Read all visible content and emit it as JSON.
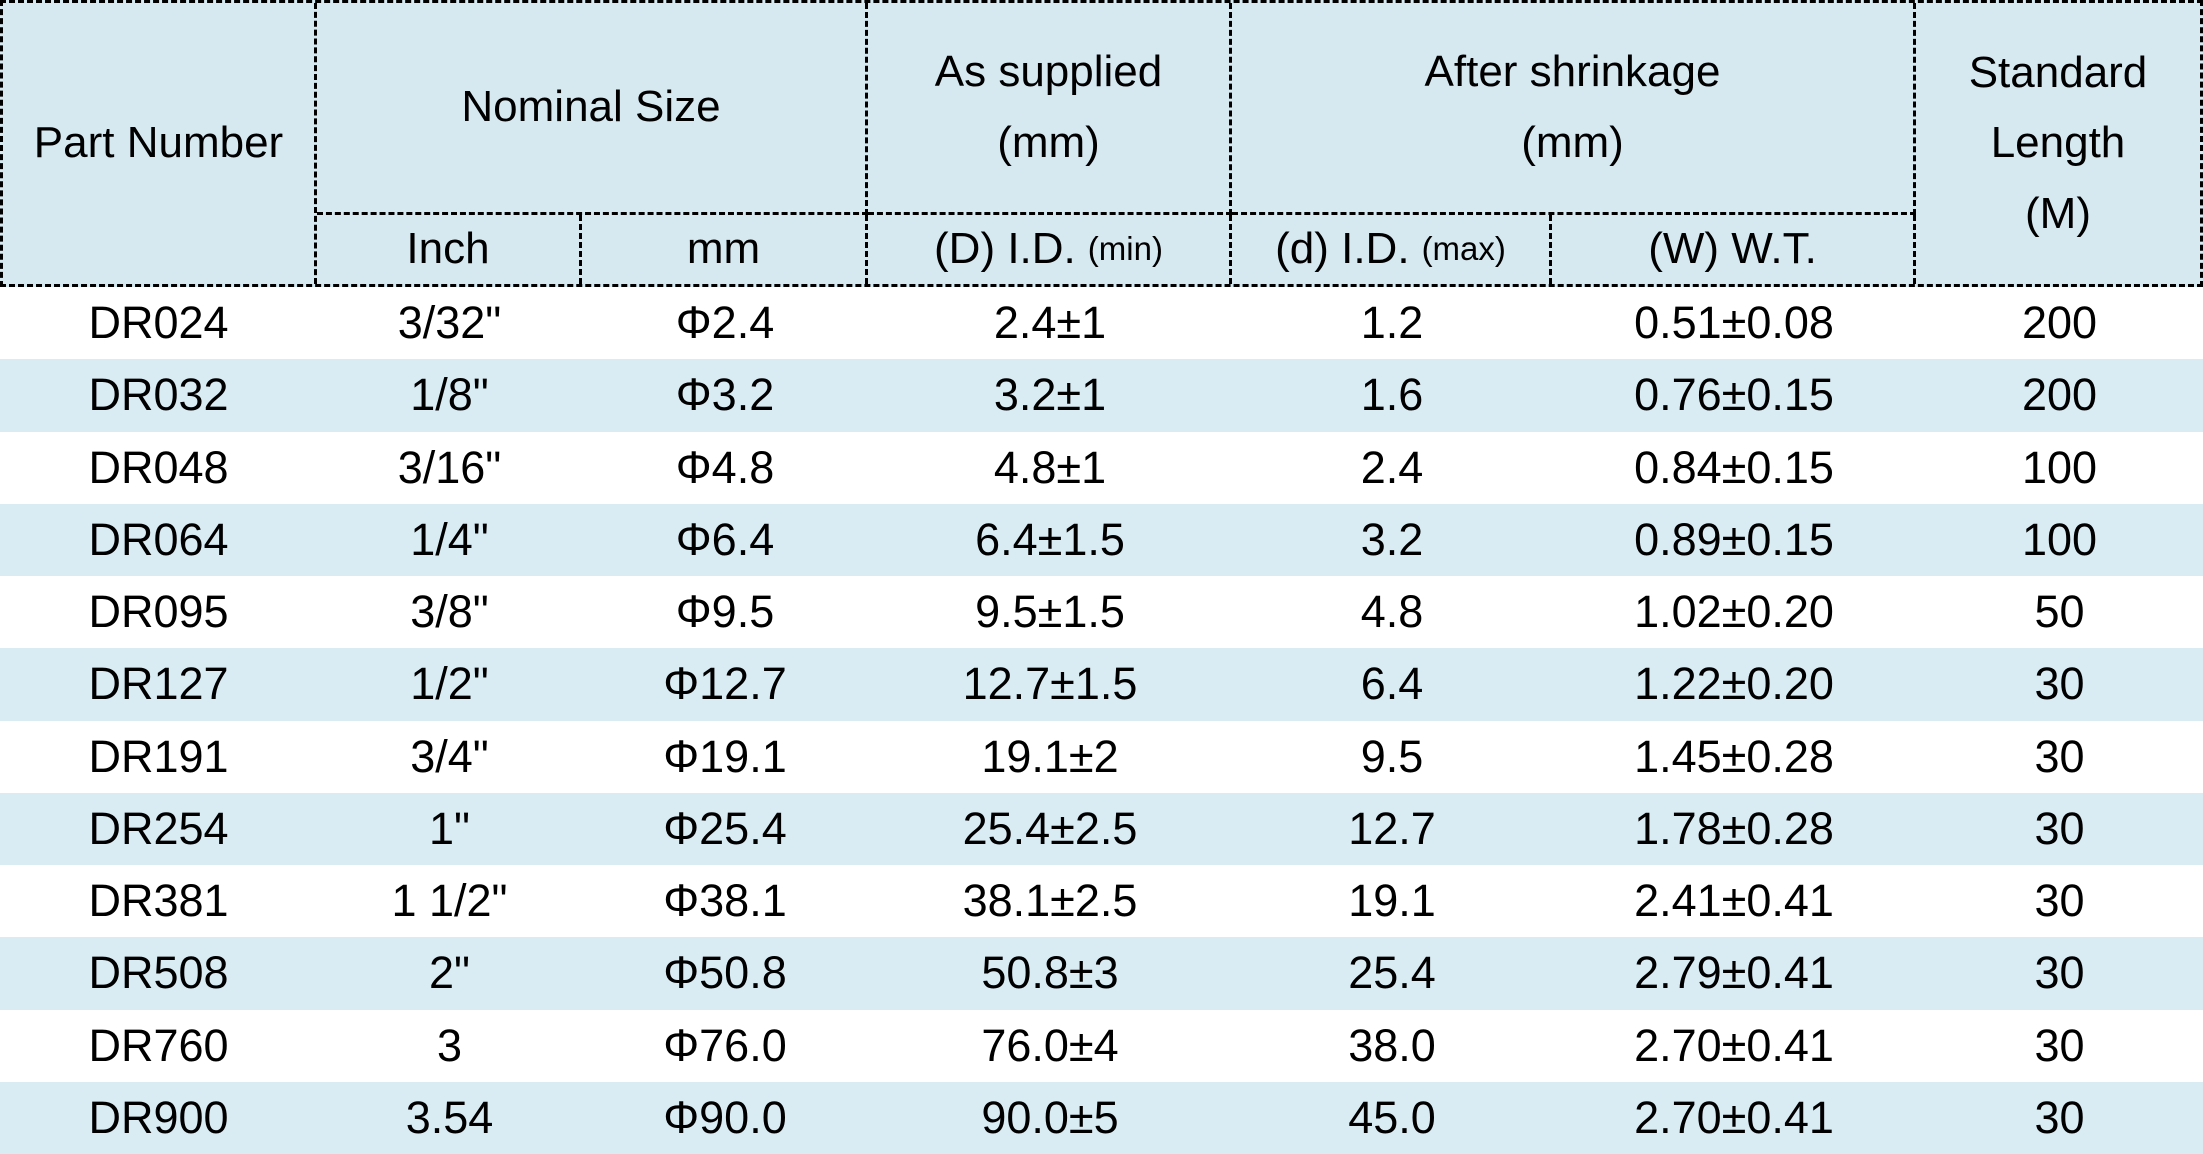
{
  "colors": {
    "header_bg": "#d6e9f1",
    "row_alt_bg": "#d9ecf4",
    "border": "#000000",
    "text": "#000000"
  },
  "table": {
    "header": {
      "part_number": "Part Number",
      "nominal_size": "Nominal Size",
      "as_supplied_line1": "As supplied",
      "as_supplied_line2": "(mm)",
      "after_shrinkage_line1": "After shrinkage",
      "after_shrinkage_line2": "(mm)",
      "standard_length_line1": "Standard",
      "standard_length_line2": "Length",
      "standard_length_line3": "(M)",
      "inch": "Inch",
      "mm": "mm",
      "d_id_min": {
        "main": "(D) I.D.",
        "small": "(min)"
      },
      "d_id_max": {
        "main": "(d) I.D.",
        "small": "(max)"
      },
      "w_wt": "(W) W.T."
    },
    "rows": [
      [
        "DR024",
        "3/32\"",
        "Φ2.4",
        "2.4±1",
        "1.2",
        "0.51±0.08",
        "200"
      ],
      [
        "DR032",
        "1/8\"",
        "Φ3.2",
        "3.2±1",
        "1.6",
        "0.76±0.15",
        "200"
      ],
      [
        "DR048",
        "3/16\"",
        "Φ4.8",
        "4.8±1",
        "2.4",
        "0.84±0.15",
        "100"
      ],
      [
        "DR064",
        "1/4\"",
        "Φ6.4",
        "6.4±1.5",
        "3.2",
        "0.89±0.15",
        "100"
      ],
      [
        "DR095",
        "3/8\"",
        "Φ9.5",
        "9.5±1.5",
        "4.8",
        "1.02±0.20",
        "50"
      ],
      [
        "DR127",
        "1/2\"",
        "Φ12.7",
        "12.7±1.5",
        "6.4",
        "1.22±0.20",
        "30"
      ],
      [
        "DR191",
        "3/4\"",
        "Φ19.1",
        "19.1±2",
        "9.5",
        "1.45±0.28",
        "30"
      ],
      [
        "DR254",
        "1\"",
        "Φ25.4",
        "25.4±2.5",
        "12.7",
        "1.78±0.28",
        "30"
      ],
      [
        "DR381",
        "1 1/2\"",
        "Φ38.1",
        "38.1±2.5",
        "19.1",
        "2.41±0.41",
        "30"
      ],
      [
        "DR508",
        "2\"",
        "Φ50.8",
        "50.8±3",
        "25.4",
        "2.79±0.41",
        "30"
      ],
      [
        "DR760",
        "3",
        "Φ76.0",
        "76.0±4",
        "38.0",
        "2.70±0.41",
        "30"
      ],
      [
        "DR900",
        "3.54",
        "Φ90.0",
        "90.0±5",
        "45.0",
        "2.70±0.41",
        "30"
      ]
    ]
  }
}
